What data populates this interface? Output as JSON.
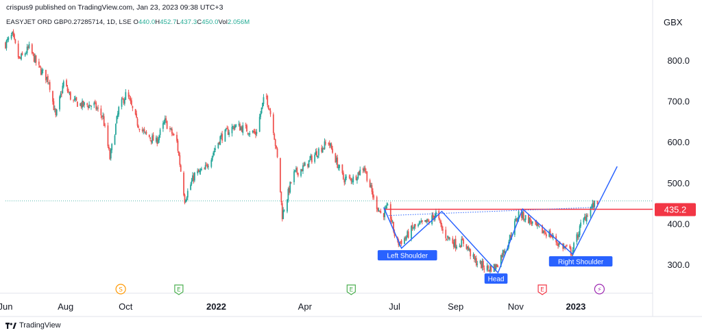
{
  "header": {
    "published": "crispus9 published on TradingView.com, Jan 23, 2023 09:38 UTC+3",
    "symbol": "EASYJET ORD GBP0.27285714, 1D, LSE",
    "ohlc": [
      {
        "k": "O",
        "v": "440.0"
      },
      {
        "k": "H",
        "v": "452.7"
      },
      {
        "k": "L",
        "v": "437.3"
      },
      {
        "k": "C",
        "v": "450.0"
      },
      {
        "k": "Vol",
        "v": "2.056M"
      }
    ],
    "currency": "GBX"
  },
  "footer": {
    "brand": "TradingView"
  },
  "colors": {
    "up": "#26a69a",
    "down": "#ef5350",
    "pattern": "#2962ff",
    "resistance": "#f23645",
    "text": "#131722",
    "axis": "#e0e3eb"
  },
  "chart_data": {
    "type": "candlestick",
    "price_unit": "GBX",
    "y_ticks": [
      300,
      400,
      500,
      600,
      700,
      800
    ],
    "y_tick_labels": [
      "300.0",
      "400.0",
      "500.0",
      "600.0",
      "700.0",
      "800.0"
    ],
    "ylim": [
      230,
      870
    ],
    "xlim": [
      "2021-06-01",
      "2023-03-20"
    ],
    "x_ticks": [
      {
        "date": "2021-06-01",
        "label": "Jun",
        "bold": false
      },
      {
        "date": "2021-08-01",
        "label": "Aug",
        "bold": false
      },
      {
        "date": "2021-10-01",
        "label": "Oct",
        "bold": false
      },
      {
        "date": "2022-01-01",
        "label": "2022",
        "bold": true
      },
      {
        "date": "2022-04-01",
        "label": "Apr",
        "bold": false
      },
      {
        "date": "2022-07-01",
        "label": "Jul",
        "bold": false
      },
      {
        "date": "2022-09-01",
        "label": "Sep",
        "bold": false
      },
      {
        "date": "2022-11-01",
        "label": "Nov",
        "bold": false
      },
      {
        "date": "2023-01-01",
        "label": "2023",
        "bold": true
      }
    ],
    "price_path": [
      [
        "2021-06-01",
        840
      ],
      [
        "2021-06-08",
        860
      ],
      [
        "2021-06-15",
        800
      ],
      [
        "2021-06-25",
        830
      ],
      [
        "2021-07-05",
        780
      ],
      [
        "2021-07-15",
        750
      ],
      [
        "2021-07-22",
        660
      ],
      [
        "2021-07-30",
        745
      ],
      [
        "2021-08-08",
        700
      ],
      [
        "2021-08-18",
        690
      ],
      [
        "2021-08-30",
        690
      ],
      [
        "2021-09-08",
        660
      ],
      [
        "2021-09-15",
        560
      ],
      [
        "2021-09-24",
        680
      ],
      [
        "2021-10-02",
        720
      ],
      [
        "2021-10-12",
        650
      ],
      [
        "2021-10-20",
        620
      ],
      [
        "2021-11-01",
        600
      ],
      [
        "2021-11-10",
        650
      ],
      [
        "2021-11-22",
        600
      ],
      [
        "2021-11-30",
        460
      ],
      [
        "2021-12-10",
        520
      ],
      [
        "2021-12-20",
        530
      ],
      [
        "2022-01-05",
        610
      ],
      [
        "2022-01-20",
        640
      ],
      [
        "2022-02-01",
        630
      ],
      [
        "2022-02-10",
        620
      ],
      [
        "2022-02-20",
        720
      ],
      [
        "2022-02-27",
        650
      ],
      [
        "2022-03-05",
        540
      ],
      [
        "2022-03-09",
        420
      ],
      [
        "2022-03-20",
        520
      ],
      [
        "2022-04-01",
        540
      ],
      [
        "2022-04-15",
        580
      ],
      [
        "2022-04-25",
        600
      ],
      [
        "2022-05-10",
        510
      ],
      [
        "2022-05-20",
        510
      ],
      [
        "2022-05-31",
        540
      ],
      [
        "2022-06-10",
        460
      ],
      [
        "2022-06-18",
        420
      ],
      [
        "2022-06-25",
        440
      ],
      [
        "2022-07-03",
        350
      ],
      [
        "2022-07-12",
        365
      ],
      [
        "2022-07-20",
        390
      ],
      [
        "2022-08-05",
        405
      ],
      [
        "2022-08-12",
        425
      ],
      [
        "2022-08-20",
        375
      ],
      [
        "2022-09-01",
        350
      ],
      [
        "2022-09-10",
        355
      ],
      [
        "2022-09-20",
        310
      ],
      [
        "2022-10-03",
        290
      ],
      [
        "2022-10-12",
        295
      ],
      [
        "2022-10-25",
        360
      ],
      [
        "2022-11-04",
        425
      ],
      [
        "2022-11-14",
        410
      ],
      [
        "2022-11-25",
        385
      ],
      [
        "2022-12-05",
        375
      ],
      [
        "2022-12-15",
        350
      ],
      [
        "2022-12-28",
        330
      ],
      [
        "2023-01-06",
        395
      ],
      [
        "2023-01-16",
        440
      ],
      [
        "2023-01-23",
        450
      ]
    ],
    "current_price_line": {
      "value": 456,
      "style": "dotted"
    },
    "resistance_line": {
      "value": 435.2,
      "label": "435.2",
      "from": "2022-06-20",
      "to": "2023-03-20"
    },
    "pattern_path": [
      [
        "2022-06-20",
        440
      ],
      [
        "2022-07-08",
        340
      ],
      [
        "2022-08-18",
        430
      ],
      [
        "2022-10-14",
        280
      ],
      [
        "2022-11-08",
        436
      ],
      [
        "2022-12-29",
        325
      ],
      [
        "2023-02-12",
        540
      ]
    ],
    "neckline": [
      [
        "2022-06-25",
        420
      ],
      [
        "2023-01-20",
        440
      ]
    ],
    "pattern_labels": [
      {
        "text": "Left Shoulder",
        "date": "2022-07-14",
        "price": 322
      },
      {
        "text": "Head",
        "date": "2022-10-12",
        "price": 265
      },
      {
        "text": "Right Shoulder",
        "date": "2023-01-06",
        "price": 307
      }
    ],
    "events": [
      {
        "date": "2021-09-26",
        "symbol": "S",
        "kind": "split"
      },
      {
        "date": "2021-11-24",
        "symbol": "E",
        "kind": "earnings"
      },
      {
        "date": "2022-05-18",
        "symbol": "E",
        "kind": "earnings"
      },
      {
        "date": "2022-11-28",
        "symbol": "E",
        "kind": "earnings-down"
      },
      {
        "date": "2023-01-25",
        "symbol": "⚡",
        "kind": "news"
      }
    ]
  }
}
